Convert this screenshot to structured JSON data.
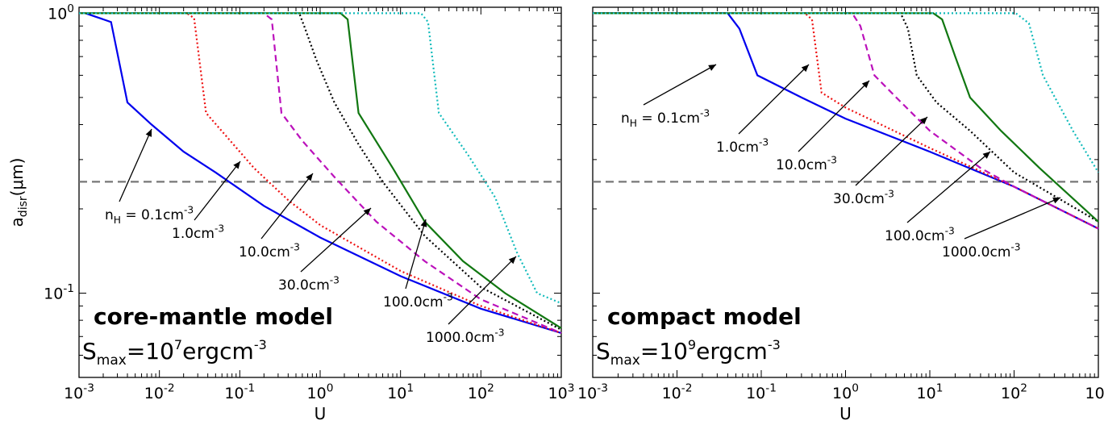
{
  "chart_data": [
    {
      "type": "line",
      "xlabel": "U",
      "ylabel": "a_disr(μm)",
      "x_scale": "log",
      "y_scale": "log",
      "xlim": [
        0.001,
        1000
      ],
      "ylim": [
        0.05,
        1.05
      ],
      "xticks": [
        "10^-3",
        "10^-2",
        "10^-1",
        "10^0",
        "10^1",
        "10^2",
        "10^3"
      ],
      "yticks": [
        "10^-1",
        "10^0"
      ],
      "hline": 0.25,
      "annotation_title": "core-mantle model",
      "annotation_formula": {
        "base": "S",
        "sub": "max",
        "expr": "=10",
        "sup": "7",
        "unit": "ergcm",
        "unit_sup": "-3"
      },
      "series": [
        {
          "label": "n_H = 0.1cm^-3",
          "color": "#0000ee",
          "dash": "solid",
          "points": [
            [
              0.0012,
              1.0
            ],
            [
              0.0025,
              0.93
            ],
            [
              0.004,
              0.48
            ],
            [
              0.008,
              0.4
            ],
            [
              0.02,
              0.32
            ],
            [
              0.05,
              0.27
            ],
            [
              0.2,
              0.205
            ],
            [
              1,
              0.158
            ],
            [
              10,
              0.115
            ],
            [
              100,
              0.088
            ],
            [
              1000,
              0.072
            ]
          ]
        },
        {
          "label": "1.0cm^-3",
          "color": "#ee1111",
          "dash": "dot",
          "points": [
            [
              0.001,
              1.0
            ],
            [
              0.022,
              1.0
            ],
            [
              0.027,
              0.96
            ],
            [
              0.038,
              0.44
            ],
            [
              0.07,
              0.36
            ],
            [
              0.15,
              0.28
            ],
            [
              0.4,
              0.215
            ],
            [
              1,
              0.175
            ],
            [
              10,
              0.12
            ],
            [
              100,
              0.09
            ],
            [
              1000,
              0.072
            ]
          ]
        },
        {
          "label": "10.0cm^-3",
          "color": "#bb11bb",
          "dash": "dash",
          "points": [
            [
              0.001,
              1.0
            ],
            [
              0.2,
              1.0
            ],
            [
              0.25,
              0.95
            ],
            [
              0.33,
              0.44
            ],
            [
              0.6,
              0.35
            ],
            [
              1.5,
              0.26
            ],
            [
              5,
              0.18
            ],
            [
              20,
              0.13
            ],
            [
              100,
              0.095
            ],
            [
              1000,
              0.072
            ]
          ]
        },
        {
          "label": "30.0cm^-3",
          "color": "#000000",
          "dash": "dot",
          "points": [
            [
              0.001,
              1.0
            ],
            [
              0.55,
              1.0
            ],
            [
              0.65,
              0.88
            ],
            [
              0.9,
              0.68
            ],
            [
              1.5,
              0.48
            ],
            [
              3,
              0.34
            ],
            [
              6,
              0.25
            ],
            [
              20,
              0.16
            ],
            [
              100,
              0.105
            ],
            [
              1000,
              0.074
            ]
          ]
        },
        {
          "label": "100.0cm^-3",
          "color": "#117711",
          "dash": "solid",
          "points": [
            [
              0.001,
              1.0
            ],
            [
              1.8,
              1.0
            ],
            [
              2.2,
              0.95
            ],
            [
              3,
              0.44
            ],
            [
              8,
              0.28
            ],
            [
              20,
              0.18
            ],
            [
              60,
              0.13
            ],
            [
              200,
              0.1
            ],
            [
              1000,
              0.075
            ]
          ]
        },
        {
          "label": "1000.0cm^-3",
          "color": "#11bbbb",
          "dash": "dot",
          "points": [
            [
              0.001,
              1.0
            ],
            [
              18,
              1.0
            ],
            [
              22,
              0.93
            ],
            [
              30,
              0.44
            ],
            [
              70,
              0.31
            ],
            [
              150,
              0.22
            ],
            [
              280,
              0.14
            ],
            [
              500,
              0.1
            ],
            [
              1000,
              0.092
            ]
          ]
        }
      ]
    },
    {
      "type": "line",
      "xlabel": "U",
      "x_scale": "log",
      "y_scale": "log",
      "xlim": [
        0.001,
        1000
      ],
      "ylim": [
        0.05,
        1.05
      ],
      "xticks": [
        "10^-3",
        "10^-2",
        "10^-1",
        "10^0",
        "10^1",
        "10^2",
        "10^3"
      ],
      "hline": 0.25,
      "annotation_title": "compact model",
      "annotation_formula": {
        "base": "S",
        "sub": "max",
        "expr": "=10",
        "sup": "9",
        "unit": "ergcm",
        "unit_sup": "-3"
      },
      "series": [
        {
          "label": "n_H = 0.1cm^-3",
          "color": "#0000ee",
          "dash": "solid",
          "points": [
            [
              0.001,
              1.0
            ],
            [
              0.04,
              1.0
            ],
            [
              0.055,
              0.88
            ],
            [
              0.09,
              0.6
            ],
            [
              0.3,
              0.5
            ],
            [
              1,
              0.42
            ],
            [
              10,
              0.32
            ],
            [
              100,
              0.24
            ],
            [
              1000,
              0.17
            ]
          ]
        },
        {
          "label": "1.0cm^-3",
          "color": "#ee1111",
          "dash": "dot",
          "points": [
            [
              0.001,
              1.0
            ],
            [
              0.33,
              1.0
            ],
            [
              0.4,
              0.95
            ],
            [
              0.52,
              0.52
            ],
            [
              1,
              0.46
            ],
            [
              10,
              0.33
            ],
            [
              100,
              0.24
            ],
            [
              1000,
              0.17
            ]
          ]
        },
        {
          "label": "10.0cm^-3",
          "color": "#bb11bb",
          "dash": "dash",
          "points": [
            [
              0.001,
              1.0
            ],
            [
              1.2,
              1.0
            ],
            [
              1.5,
              0.9
            ],
            [
              2.2,
              0.6
            ],
            [
              4,
              0.5
            ],
            [
              10,
              0.38
            ],
            [
              40,
              0.28
            ],
            [
              100,
              0.24
            ],
            [
              1000,
              0.17
            ]
          ]
        },
        {
          "label": "30.0cm^-3",
          "color": "#000000",
          "dash": "dot",
          "points": [
            [
              0.001,
              1.0
            ],
            [
              4.5,
              1.0
            ],
            [
              5.5,
              0.88
            ],
            [
              7,
              0.6
            ],
            [
              12,
              0.48
            ],
            [
              30,
              0.38
            ],
            [
              100,
              0.27
            ],
            [
              1000,
              0.18
            ]
          ]
        },
        {
          "label": "100.0cm^-3",
          "color": "#117711",
          "dash": "solid",
          "points": [
            [
              0.001,
              1.0
            ],
            [
              11,
              1.0
            ],
            [
              14,
              0.95
            ],
            [
              20,
              0.7
            ],
            [
              30,
              0.5
            ],
            [
              70,
              0.38
            ],
            [
              200,
              0.28
            ],
            [
              1000,
              0.18
            ]
          ]
        },
        {
          "label": "1000.0cm^-3",
          "color": "#11bbbb",
          "dash": "dot",
          "points": [
            [
              0.001,
              1.0
            ],
            [
              105,
              1.0
            ],
            [
              150,
              0.92
            ],
            [
              220,
              0.6
            ],
            [
              500,
              0.38
            ],
            [
              1000,
              0.27
            ]
          ]
        }
      ]
    }
  ]
}
